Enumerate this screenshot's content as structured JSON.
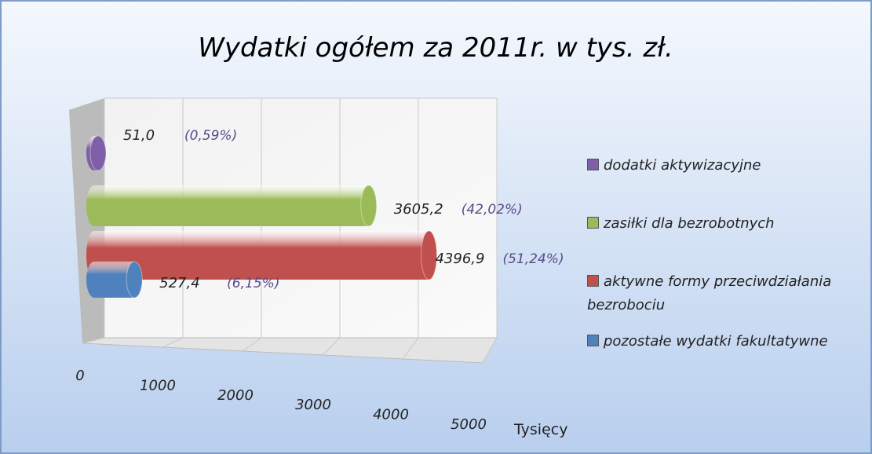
{
  "chart_data": {
    "type": "bar3d",
    "title": "Wydatki ogółem za 2011r. w tys. zł.",
    "x_label": "Tysięcy",
    "categories": [
      "dodatki aktywizacyjne",
      "zasiłki dla bezrobotnych",
      "aktywne formy przeciwdziałania bezrobociu",
      "pozostałe wydatki fakultatywne"
    ],
    "values": [
      51.0,
      3605.2,
      4396.9,
      527.4
    ],
    "value_labels": [
      "51,0",
      "3605,2",
      "4396,9",
      "527,4"
    ],
    "percent_labels": [
      "(0,59%)",
      "(42,02%)",
      "(51,24%)",
      "(6,15%)"
    ],
    "colors": [
      "#7f60a8",
      "#9bbb59",
      "#c0504d",
      "#4f81bd"
    ],
    "xlim": [
      0,
      5000
    ],
    "xticks": [
      0,
      1000,
      2000,
      3000,
      4000,
      5000
    ],
    "grid": true
  }
}
